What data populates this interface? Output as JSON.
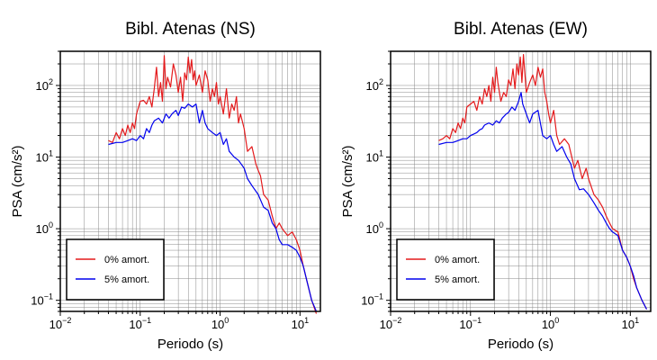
{
  "chart_data": [
    {
      "type": "line",
      "title": "Bibl. Atenas (NS)",
      "xlabel": "Periodo (s)",
      "ylabel": "PSA (cm/s²)",
      "xscale": "log",
      "yscale": "log",
      "xlim": [
        0.01,
        18
      ],
      "ylim": [
        0.07,
        300
      ],
      "xticks": [
        0.01,
        0.1,
        1,
        10
      ],
      "xticklabels": [
        "10",
        "10",
        "10",
        "10"
      ],
      "xtickexps": [
        "−2",
        "−1",
        "0",
        "1"
      ],
      "yticks": [
        0.1,
        1,
        10,
        100
      ],
      "yticklabels": [
        "10",
        "10",
        "10",
        "10"
      ],
      "ytickexps": [
        "−1",
        "0",
        "1",
        "2"
      ],
      "grid": true,
      "legend": "bottom-left",
      "series": [
        {
          "name": "0% amort.",
          "color": "#e41a1c",
          "x": [
            0.04,
            0.045,
            0.05,
            0.055,
            0.06,
            0.065,
            0.07,
            0.075,
            0.08,
            0.085,
            0.09,
            0.1,
            0.11,
            0.12,
            0.13,
            0.14,
            0.15,
            0.16,
            0.17,
            0.18,
            0.19,
            0.2,
            0.21,
            0.22,
            0.24,
            0.26,
            0.28,
            0.3,
            0.32,
            0.34,
            0.36,
            0.38,
            0.4,
            0.42,
            0.44,
            0.46,
            0.48,
            0.5,
            0.55,
            0.6,
            0.65,
            0.7,
            0.75,
            0.8,
            0.85,
            0.9,
            0.95,
            1.0,
            1.1,
            1.2,
            1.3,
            1.4,
            1.5,
            1.6,
            1.7,
            1.8,
            2.0,
            2.2,
            2.5,
            2.8,
            3.0,
            3.2,
            3.5,
            4.0,
            4.5,
            5.0,
            5.5,
            6.0,
            7.0,
            8.0,
            9.0,
            10,
            11,
            12,
            14,
            16
          ],
          "y": [
            17,
            16,
            22,
            18,
            25,
            20,
            28,
            22,
            30,
            25,
            40,
            60,
            62,
            55,
            70,
            50,
            90,
            180,
            70,
            110,
            60,
            260,
            90,
            130,
            95,
            200,
            140,
            80,
            130,
            60,
            150,
            120,
            250,
            150,
            230,
            120,
            160,
            100,
            140,
            80,
            160,
            120,
            60,
            90,
            70,
            110,
            55,
            70,
            40,
            90,
            35,
            55,
            45,
            70,
            30,
            40,
            25,
            12,
            14,
            8,
            6.5,
            5.5,
            3,
            2.5,
            1.5,
            1.0,
            1.2,
            1.0,
            0.8,
            0.9,
            0.7,
            0.5,
            0.3,
            0.2,
            0.1,
            0.065
          ]
        },
        {
          "name": "5% amort.",
          "color": "#0000ee",
          "x": [
            0.04,
            0.05,
            0.06,
            0.07,
            0.08,
            0.09,
            0.1,
            0.11,
            0.12,
            0.13,
            0.14,
            0.15,
            0.17,
            0.19,
            0.21,
            0.23,
            0.25,
            0.28,
            0.3,
            0.33,
            0.36,
            0.4,
            0.45,
            0.5,
            0.55,
            0.6,
            0.65,
            0.7,
            0.8,
            0.9,
            1.0,
            1.1,
            1.2,
            1.3,
            1.5,
            1.7,
            2.0,
            2.2,
            2.5,
            3.0,
            3.5,
            4.0,
            4.5,
            5.0,
            5.5,
            6.0,
            7.0,
            8.0,
            9.0,
            10,
            11,
            12,
            14,
            16
          ],
          "y": [
            15,
            16,
            16,
            17,
            18,
            17,
            20,
            18,
            25,
            22,
            28,
            32,
            35,
            30,
            40,
            35,
            40,
            45,
            38,
            50,
            48,
            55,
            50,
            55,
            30,
            45,
            30,
            25,
            22,
            20,
            22,
            15,
            18,
            12,
            10,
            9,
            7,
            5,
            4,
            3,
            2,
            1.8,
            1.2,
            1.0,
            0.7,
            0.6,
            0.6,
            0.55,
            0.5,
            0.4,
            0.3,
            0.2,
            0.1,
            0.07
          ]
        }
      ]
    },
    {
      "type": "line",
      "title": "Bibl. Atenas (EW)",
      "xlabel": "Periodo (s)",
      "ylabel": "PSA (cm/s²)",
      "xscale": "log",
      "yscale": "log",
      "xlim": [
        0.01,
        18
      ],
      "ylim": [
        0.07,
        300
      ],
      "xticks": [
        0.01,
        0.1,
        1,
        10
      ],
      "xticklabels": [
        "10",
        "10",
        "10",
        "10"
      ],
      "xtickexps": [
        "−2",
        "−1",
        "0",
        "1"
      ],
      "yticks": [
        0.1,
        1,
        10,
        100
      ],
      "yticklabels": [
        "10",
        "10",
        "10",
        "10"
      ],
      "ytickexps": [
        "−1",
        "0",
        "1",
        "2"
      ],
      "grid": true,
      "legend": "bottom-left",
      "series": [
        {
          "name": "0% amort.",
          "color": "#e41a1c",
          "x": [
            0.04,
            0.045,
            0.05,
            0.055,
            0.06,
            0.065,
            0.07,
            0.075,
            0.08,
            0.085,
            0.09,
            0.1,
            0.11,
            0.12,
            0.13,
            0.14,
            0.15,
            0.16,
            0.17,
            0.18,
            0.19,
            0.2,
            0.21,
            0.22,
            0.24,
            0.26,
            0.28,
            0.3,
            0.32,
            0.34,
            0.36,
            0.38,
            0.4,
            0.42,
            0.44,
            0.46,
            0.5,
            0.55,
            0.6,
            0.65,
            0.7,
            0.75,
            0.8,
            0.85,
            0.9,
            0.95,
            1.0,
            1.1,
            1.2,
            1.3,
            1.5,
            1.7,
            2.0,
            2.2,
            2.5,
            2.8,
            3.0,
            3.5,
            4.0,
            4.5,
            5.0,
            5.5,
            6.0,
            7.0,
            8.0,
            9.0,
            10,
            11,
            12,
            14,
            16
          ],
          "y": [
            17,
            18,
            20,
            18,
            25,
            22,
            30,
            25,
            35,
            30,
            50,
            55,
            60,
            45,
            70,
            55,
            90,
            70,
            100,
            60,
            130,
            80,
            180,
            110,
            60,
            80,
            70,
            120,
            100,
            170,
            90,
            200,
            140,
            250,
            110,
            270,
            80,
            110,
            140,
            100,
            180,
            130,
            170,
            80,
            60,
            40,
            30,
            45,
            20,
            15,
            18,
            15,
            7,
            9,
            5,
            7,
            5,
            3,
            2.5,
            2.0,
            1.5,
            1.2,
            1.0,
            0.9,
            0.5,
            0.4,
            0.3,
            0.2,
            0.15,
            0.1,
            0.075
          ]
        },
        {
          "name": "5% amort.",
          "color": "#0000ee",
          "x": [
            0.04,
            0.05,
            0.06,
            0.07,
            0.08,
            0.09,
            0.1,
            0.11,
            0.12,
            0.13,
            0.14,
            0.15,
            0.17,
            0.19,
            0.21,
            0.23,
            0.25,
            0.28,
            0.3,
            0.33,
            0.36,
            0.4,
            0.43,
            0.45,
            0.5,
            0.55,
            0.6,
            0.7,
            0.8,
            0.9,
            1.0,
            1.1,
            1.2,
            1.4,
            1.6,
            1.8,
            2.0,
            2.3,
            2.6,
            3.0,
            3.5,
            4.0,
            4.5,
            5.0,
            5.5,
            6.0,
            7.0,
            8.0,
            9.0,
            10,
            11,
            12,
            14,
            16
          ],
          "y": [
            15,
            16,
            16,
            17,
            18,
            18,
            20,
            21,
            22,
            24,
            25,
            28,
            30,
            28,
            32,
            30,
            35,
            40,
            42,
            50,
            45,
            60,
            80,
            55,
            40,
            30,
            40,
            45,
            20,
            18,
            20,
            15,
            12,
            14,
            10,
            8,
            5,
            3.5,
            3.6,
            3.0,
            2.3,
            1.8,
            1.5,
            1.2,
            1.0,
            0.9,
            0.8,
            0.5,
            0.4,
            0.3,
            0.22,
            0.15,
            0.1,
            0.075
          ]
        }
      ]
    }
  ]
}
